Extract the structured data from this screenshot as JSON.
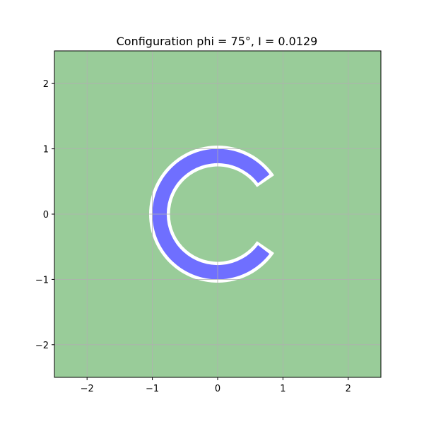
{
  "chart_data": {
    "type": "area",
    "title": "Configuration phi = 75°, I = 0.0129",
    "xlabel": "",
    "ylabel": "",
    "xlim": [
      -2.5,
      2.5
    ],
    "ylim": [
      -2.5,
      2.5
    ],
    "grid": true,
    "xticks": [
      {
        "value": -2,
        "label": "−2"
      },
      {
        "value": -1,
        "label": "−1"
      },
      {
        "value": 0,
        "label": "0"
      },
      {
        "value": 1,
        "label": "1"
      },
      {
        "value": 2,
        "label": "2"
      }
    ],
    "yticks": [
      {
        "value": -2,
        "label": "−2"
      },
      {
        "value": -1,
        "label": "−1"
      },
      {
        "value": 0,
        "label": "0"
      },
      {
        "value": 1,
        "label": "1"
      },
      {
        "value": 2,
        "label": "2"
      }
    ],
    "background_region": {
      "fill": "#99cc99"
    },
    "ring": {
      "fill": "#6f6fff",
      "outer_radius": 1.0,
      "inner_radius": 0.78,
      "phi_deg": 75,
      "gap_half_angle_deg": 37.5,
      "opening_side": "right"
    },
    "boundary_gap": {
      "fill": "#ffffff",
      "margin": 0.05
    },
    "colors": {
      "grid": "#b0b0b0",
      "axes": "#000000"
    }
  }
}
